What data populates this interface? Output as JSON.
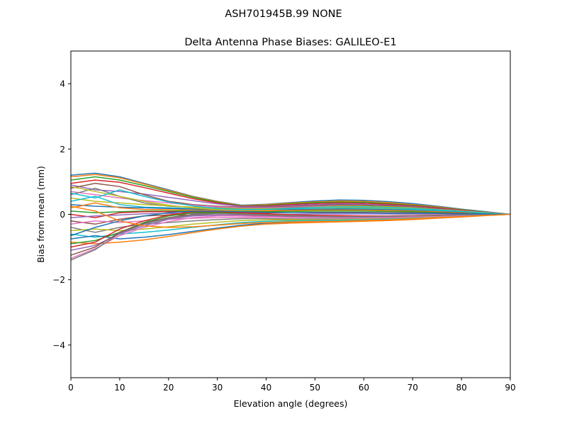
{
  "chart_data": {
    "type": "line",
    "suptitle": "ASH701945B.99   NONE",
    "title": "Delta Antenna Phase Biases: GALILEO-E1",
    "xlabel": "Elevation angle (degrees)",
    "ylabel": "Bias from mean (mm)",
    "xlim": [
      0,
      90
    ],
    "ylim": [
      -5,
      5
    ],
    "xticks": [
      0,
      10,
      20,
      30,
      40,
      50,
      60,
      70,
      80,
      90
    ],
    "yticks": [
      -4,
      -2,
      0,
      2,
      4
    ],
    "ytick_labels": [
      "−4",
      "−2",
      "0",
      "2",
      "4"
    ],
    "grid": false,
    "colors": [
      "#1f77b4",
      "#ff7f0e",
      "#2ca02c",
      "#d62728",
      "#9467bd",
      "#8c564b",
      "#e377c2",
      "#7f7f7f",
      "#bcbd22",
      "#17becf"
    ],
    "x": [
      0,
      5,
      10,
      15,
      20,
      25,
      30,
      35,
      40,
      45,
      50,
      55,
      60,
      65,
      70,
      75,
      80,
      85,
      90
    ],
    "series": [
      {
        "values": [
          1.2,
          1.26,
          1.15,
          0.95,
          0.75,
          0.55,
          0.4,
          0.28,
          0.31,
          0.36,
          0.41,
          0.44,
          0.43,
          0.39,
          0.33,
          0.25,
          0.16,
          0.08,
          0
        ]
      },
      {
        "values": [
          1.15,
          1.22,
          1.12,
          0.93,
          0.73,
          0.54,
          0.39,
          0.27,
          0.3,
          0.34,
          0.38,
          0.41,
          0.4,
          0.36,
          0.3,
          0.23,
          0.15,
          0.07,
          0
        ]
      },
      {
        "values": [
          1.05,
          1.15,
          1.05,
          0.88,
          0.7,
          0.52,
          0.37,
          0.26,
          0.28,
          0.32,
          0.36,
          0.38,
          0.37,
          0.33,
          0.28,
          0.21,
          0.14,
          0.07,
          0
        ]
      },
      {
        "values": [
          0.95,
          1.05,
          0.98,
          0.82,
          0.65,
          0.48,
          0.35,
          0.25,
          0.26,
          0.3,
          0.33,
          0.35,
          0.34,
          0.31,
          0.26,
          0.2,
          0.13,
          0.06,
          0
        ]
      },
      {
        "values": [
          0.9,
          0.75,
          0.7,
          0.62,
          0.52,
          0.42,
          0.32,
          0.24,
          0.24,
          0.27,
          0.3,
          0.32,
          0.31,
          0.28,
          0.24,
          0.18,
          0.12,
          0.06,
          0
        ]
      },
      {
        "values": [
          0.8,
          0.95,
          0.85,
          0.6,
          0.4,
          0.3,
          0.25,
          0.22,
          0.22,
          0.24,
          0.27,
          0.29,
          0.28,
          0.26,
          0.22,
          0.17,
          0.11,
          0.05,
          0
        ]
      },
      {
        "values": [
          0.7,
          0.6,
          0.5,
          0.42,
          0.35,
          0.28,
          0.23,
          0.2,
          0.2,
          0.22,
          0.24,
          0.26,
          0.25,
          0.23,
          0.2,
          0.15,
          0.1,
          0.05,
          0
        ]
      },
      {
        "values": [
          0.6,
          0.8,
          0.55,
          0.35,
          0.25,
          0.22,
          0.2,
          0.18,
          0.18,
          0.2,
          0.22,
          0.23,
          0.23,
          0.21,
          0.18,
          0.14,
          0.09,
          0.04,
          0
        ]
      },
      {
        "values": [
          0.5,
          0.4,
          0.35,
          0.3,
          0.26,
          0.22,
          0.19,
          0.17,
          0.17,
          0.18,
          0.2,
          0.21,
          0.2,
          0.19,
          0.16,
          0.12,
          0.08,
          0.04,
          0
        ]
      },
      {
        "values": [
          0.4,
          0.55,
          0.3,
          0.22,
          0.2,
          0.18,
          0.16,
          0.15,
          0.15,
          0.16,
          0.17,
          0.18,
          0.18,
          0.16,
          0.14,
          0.11,
          0.07,
          0.03,
          0
        ]
      },
      {
        "values": [
          0.3,
          0.25,
          0.22,
          0.2,
          0.18,
          0.16,
          0.14,
          0.13,
          0.13,
          0.14,
          0.15,
          0.16,
          0.15,
          0.14,
          0.12,
          0.09,
          0.06,
          0.03,
          0
        ]
      },
      {
        "values": [
          0.2,
          0.35,
          0.2,
          0.15,
          0.14,
          0.13,
          0.12,
          0.11,
          0.11,
          0.12,
          0.13,
          0.13,
          0.13,
          0.12,
          0.1,
          0.08,
          0.05,
          0.02,
          0
        ]
      },
      {
        "values": [
          0.1,
          0.05,
          0.08,
          0.1,
          0.1,
          0.1,
          0.09,
          0.08,
          0.08,
          0.09,
          0.1,
          0.1,
          0.1,
          0.09,
          0.08,
          0.06,
          0.04,
          0.02,
          0
        ]
      },
      {
        "values": [
          0.0,
          -0.1,
          0.05,
          0.08,
          0.08,
          0.07,
          0.06,
          0.05,
          0.05,
          0.05,
          0.06,
          0.06,
          0.06,
          0.05,
          0.05,
          0.04,
          0.03,
          0.01,
          0
        ]
      },
      {
        "values": [
          -0.1,
          -0.05,
          -0.02,
          0.02,
          0.03,
          0.03,
          0.02,
          0.01,
          0.0,
          0.0,
          0.01,
          0.01,
          0.01,
          0.01,
          0.01,
          0.01,
          0.0,
          0.0,
          0
        ]
      },
      {
        "values": [
          -0.2,
          -0.3,
          -0.15,
          -0.05,
          -0.02,
          -0.02,
          -0.03,
          -0.04,
          -0.05,
          -0.05,
          -0.05,
          -0.05,
          -0.05,
          -0.05,
          -0.04,
          -0.03,
          -0.02,
          -0.01,
          0
        ]
      },
      {
        "values": [
          -0.3,
          -0.2,
          -0.25,
          -0.2,
          -0.15,
          -0.12,
          -0.1,
          -0.09,
          -0.09,
          -0.1,
          -0.1,
          -0.1,
          -0.1,
          -0.09,
          -0.08,
          -0.06,
          -0.04,
          -0.02,
          0
        ]
      },
      {
        "values": [
          -0.4,
          -0.55,
          -0.4,
          -0.3,
          -0.25,
          -0.2,
          -0.16,
          -0.13,
          -0.13,
          -0.14,
          -0.14,
          -0.14,
          -0.13,
          -0.12,
          -0.1,
          -0.08,
          -0.05,
          -0.02,
          0
        ]
      },
      {
        "values": [
          -0.5,
          -0.45,
          -0.5,
          -0.45,
          -0.38,
          -0.3,
          -0.24,
          -0.19,
          -0.17,
          -0.17,
          -0.17,
          -0.16,
          -0.15,
          -0.14,
          -0.12,
          -0.09,
          -0.06,
          -0.03,
          0
        ]
      },
      {
        "values": [
          -0.6,
          -0.7,
          -0.6,
          -0.55,
          -0.48,
          -0.4,
          -0.32,
          -0.25,
          -0.21,
          -0.2,
          -0.19,
          -0.18,
          -0.17,
          -0.15,
          -0.13,
          -0.1,
          -0.07,
          -0.03,
          0
        ]
      },
      {
        "values": [
          -0.75,
          -0.65,
          -0.75,
          -0.7,
          -0.62,
          -0.52,
          -0.42,
          -0.33,
          -0.27,
          -0.24,
          -0.22,
          -0.21,
          -0.2,
          -0.18,
          -0.15,
          -0.11,
          -0.07,
          -0.03,
          0
        ]
      },
      {
        "values": [
          -0.85,
          -0.9,
          -0.85,
          -0.78,
          -0.68,
          -0.56,
          -0.45,
          -0.36,
          -0.3,
          -0.27,
          -0.25,
          -0.23,
          -0.21,
          -0.19,
          -0.16,
          -0.12,
          -0.08,
          -0.04,
          0
        ]
      },
      {
        "values": [
          -0.9,
          -0.8,
          -0.55,
          -0.25,
          -0.05,
          0.05,
          0.05,
          0.02,
          -0.02,
          -0.05,
          -0.07,
          -0.08,
          -0.08,
          -0.07,
          -0.06,
          -0.04,
          -0.03,
          -0.01,
          0
        ]
      },
      {
        "values": [
          -1.0,
          -0.85,
          -0.45,
          -0.2,
          -0.02,
          0.08,
          0.08,
          0.05,
          0.02,
          -0.01,
          -0.03,
          -0.04,
          -0.05,
          -0.05,
          -0.04,
          -0.03,
          -0.02,
          -0.01,
          0
        ]
      },
      {
        "values": [
          -1.1,
          -0.95,
          -0.6,
          -0.35,
          -0.15,
          -0.05,
          -0.02,
          -0.03,
          -0.05,
          -0.07,
          -0.08,
          -0.09,
          -0.09,
          -0.08,
          -0.07,
          -0.05,
          -0.03,
          -0.01,
          0
        ]
      },
      {
        "values": [
          -1.25,
          -1.0,
          -0.55,
          -0.28,
          -0.1,
          0.0,
          0.02,
          0.0,
          -0.03,
          -0.05,
          -0.06,
          -0.07,
          -0.07,
          -0.06,
          -0.05,
          -0.04,
          -0.02,
          -0.01,
          0
        ]
      },
      {
        "values": [
          -1.35,
          -1.05,
          -0.65,
          -0.4,
          -0.22,
          -0.1,
          -0.05,
          -0.05,
          -0.07,
          -0.09,
          -0.1,
          -0.11,
          -0.11,
          -0.1,
          -0.08,
          -0.06,
          -0.04,
          -0.02,
          0
        ]
      },
      {
        "values": [
          -1.4,
          -1.08,
          -0.58,
          -0.3,
          -0.12,
          -0.02,
          0.02,
          0.01,
          -0.02,
          -0.04,
          -0.06,
          -0.07,
          -0.07,
          -0.06,
          -0.05,
          -0.04,
          -0.02,
          -0.01,
          0
        ]
      },
      {
        "values": [
          0.85,
          0.7,
          0.55,
          0.4,
          0.28,
          0.2,
          0.15,
          0.12,
          0.14,
          0.18,
          0.22,
          0.25,
          0.25,
          0.23,
          0.2,
          0.15,
          0.1,
          0.05,
          0
        ]
      },
      {
        "values": [
          0.65,
          0.5,
          0.75,
          0.55,
          0.38,
          0.26,
          0.18,
          0.14,
          0.15,
          0.18,
          0.21,
          0.23,
          0.23,
          0.21,
          0.18,
          0.14,
          0.09,
          0.04,
          0
        ]
      },
      {
        "values": [
          -0.65,
          -0.4,
          -0.2,
          -0.05,
          0.05,
          0.1,
          0.1,
          0.08,
          0.06,
          0.05,
          0.05,
          0.05,
          0.05,
          0.04,
          0.04,
          0.03,
          0.02,
          0.01,
          0
        ]
      },
      {
        "values": [
          0.25,
          0.1,
          -0.2,
          -0.35,
          -0.4,
          -0.38,
          -0.33,
          -0.28,
          -0.25,
          -0.23,
          -0.22,
          -0.21,
          -0.19,
          -0.17,
          -0.14,
          -0.1,
          -0.07,
          -0.03,
          0
        ]
      }
    ]
  }
}
